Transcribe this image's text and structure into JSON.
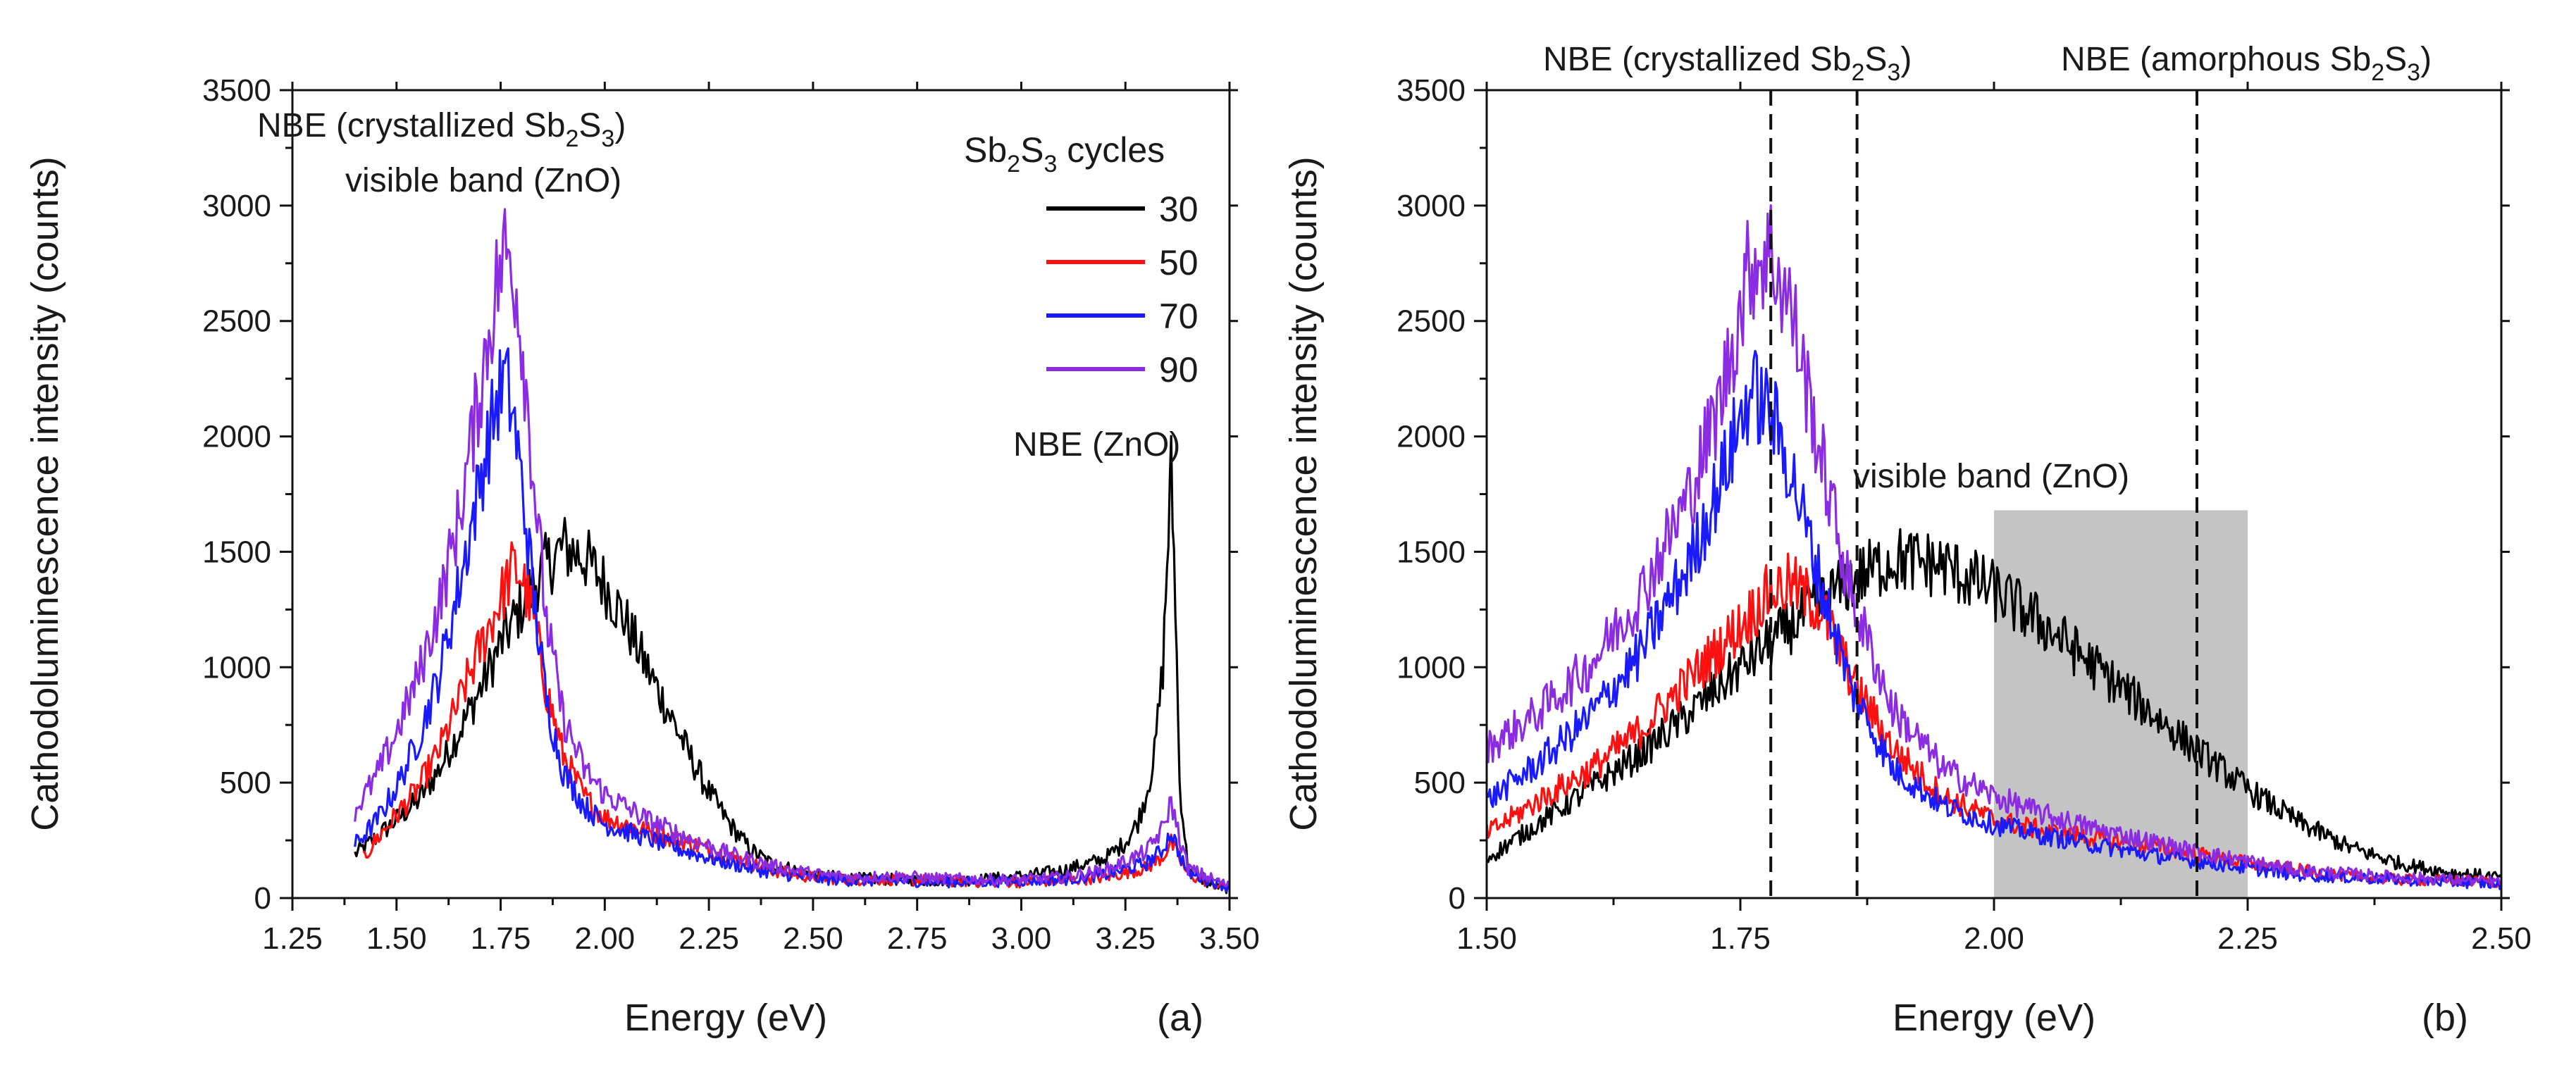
{
  "chart_data": [
    {
      "type": "line",
      "panel_label": "(a)",
      "xlabel": "Energy (eV)",
      "ylabel": "Cathodoluminescence intensity (counts)",
      "xlim": [
        1.25,
        3.5
      ],
      "ylim": [
        0,
        3500
      ],
      "xticks": [
        "1.25",
        "1.50",
        "1.75",
        "2.00",
        "2.25",
        "2.50",
        "2.75",
        "3.00",
        "3.25",
        "3.50"
      ],
      "yticks": [
        "0",
        "500",
        "1000",
        "1500",
        "2000",
        "2500",
        "3000",
        "3500"
      ],
      "legend": {
        "title_main": "Sb",
        "title_sub1": "2",
        "title_mid": "S",
        "title_sub2": "3",
        "title_tail": " cycles",
        "placement": "top-right"
      },
      "annotations": [
        {
          "text_main": "NBE (crystallized Sb",
          "sub1": "2",
          "mid": "S",
          "sub2": "3",
          "tail": ")"
        },
        {
          "text": "visible band (ZnO)"
        },
        {
          "text": "NBE (ZnO)"
        }
      ],
      "series": [
        {
          "name": "30",
          "color": "#000000",
          "points": [
            [
              1.4,
              190
            ],
            [
              1.45,
              260
            ],
            [
              1.5,
              340
            ],
            [
              1.55,
              420
            ],
            [
              1.6,
              550
            ],
            [
              1.65,
              720
            ],
            [
              1.7,
              900
            ],
            [
              1.75,
              1100
            ],
            [
              1.8,
              1260
            ],
            [
              1.85,
              1420
            ],
            [
              1.9,
              1520
            ],
            [
              1.95,
              1480
            ],
            [
              2.0,
              1360
            ],
            [
              2.05,
              1200
            ],
            [
              2.1,
              1000
            ],
            [
              2.15,
              820
            ],
            [
              2.2,
              630
            ],
            [
              2.25,
              460
            ],
            [
              2.3,
              320
            ],
            [
              2.35,
              210
            ],
            [
              2.4,
              150
            ],
            [
              2.5,
              100
            ],
            [
              2.6,
              85
            ],
            [
              2.7,
              80
            ],
            [
              2.8,
              75
            ],
            [
              2.9,
              80
            ],
            [
              3.0,
              95
            ],
            [
              3.1,
              120
            ],
            [
              3.2,
              170
            ],
            [
              3.25,
              240
            ],
            [
              3.28,
              330
            ],
            [
              3.3,
              450
            ],
            [
              3.32,
              620
            ],
            [
              3.34,
              1000
            ],
            [
              3.35,
              1450
            ],
            [
              3.36,
              1850
            ],
            [
              3.37,
              1300
            ],
            [
              3.38,
              500
            ],
            [
              3.4,
              130
            ],
            [
              3.45,
              60
            ],
            [
              3.5,
              40
            ]
          ]
        },
        {
          "name": "50",
          "color": "#ff1010",
          "points": [
            [
              1.42,
              170
            ],
            [
              1.45,
              250
            ],
            [
              1.5,
              360
            ],
            [
              1.55,
              470
            ],
            [
              1.6,
              630
            ],
            [
              1.65,
              850
            ],
            [
              1.7,
              1080
            ],
            [
              1.75,
              1300
            ],
            [
              1.78,
              1430
            ],
            [
              1.8,
              1400
            ],
            [
              1.83,
              1200
            ],
            [
              1.86,
              900
            ],
            [
              1.9,
              620
            ],
            [
              1.95,
              440
            ],
            [
              2.0,
              350
            ],
            [
              2.1,
              290
            ],
            [
              2.2,
              240
            ],
            [
              2.3,
              180
            ],
            [
              2.4,
              120
            ],
            [
              2.5,
              90
            ],
            [
              2.6,
              80
            ],
            [
              2.7,
              80
            ],
            [
              2.8,
              75
            ],
            [
              2.9,
              70
            ],
            [
              3.0,
              70
            ],
            [
              3.1,
              75
            ],
            [
              3.2,
              90
            ],
            [
              3.3,
              130
            ],
            [
              3.34,
              180
            ],
            [
              3.36,
              240
            ],
            [
              3.38,
              170
            ],
            [
              3.4,
              100
            ],
            [
              3.5,
              40
            ]
          ]
        },
        {
          "name": "70",
          "color": "#1a1aff",
          "points": [
            [
              1.4,
              230
            ],
            [
              1.45,
              330
            ],
            [
              1.5,
              480
            ],
            [
              1.55,
              680
            ],
            [
              1.6,
              950
            ],
            [
              1.65,
              1350
            ],
            [
              1.7,
              1800
            ],
            [
              1.74,
              2150
            ],
            [
              1.76,
              2250
            ],
            [
              1.78,
              2100
            ],
            [
              1.8,
              1800
            ],
            [
              1.83,
              1300
            ],
            [
              1.86,
              850
            ],
            [
              1.9,
              550
            ],
            [
              1.95,
              400
            ],
            [
              2.0,
              320
            ],
            [
              2.1,
              260
            ],
            [
              2.2,
              200
            ],
            [
              2.3,
              150
            ],
            [
              2.4,
              110
            ],
            [
              2.5,
              85
            ],
            [
              2.6,
              75
            ],
            [
              2.7,
              75
            ],
            [
              2.8,
              70
            ],
            [
              2.9,
              70
            ],
            [
              3.0,
              75
            ],
            [
              3.1,
              80
            ],
            [
              3.2,
              100
            ],
            [
              3.3,
              150
            ],
            [
              3.34,
              210
            ],
            [
              3.36,
              290
            ],
            [
              3.38,
              190
            ],
            [
              3.4,
              110
            ],
            [
              3.5,
              45
            ]
          ]
        },
        {
          "name": "90",
          "color": "#8b2be2",
          "points": [
            [
              1.4,
              380
            ],
            [
              1.45,
              520
            ],
            [
              1.5,
              720
            ],
            [
              1.55,
              950
            ],
            [
              1.6,
              1250
            ],
            [
              1.65,
              1650
            ],
            [
              1.7,
              2200
            ],
            [
              1.74,
              2650
            ],
            [
              1.76,
              2800
            ],
            [
              1.78,
              2750
            ],
            [
              1.8,
              2450
            ],
            [
              1.83,
              1800
            ],
            [
              1.86,
              1200
            ],
            [
              1.9,
              780
            ],
            [
              1.95,
              560
            ],
            [
              2.0,
              450
            ],
            [
              2.1,
              340
            ],
            [
              2.2,
              260
            ],
            [
              2.3,
              190
            ],
            [
              2.4,
              140
            ],
            [
              2.5,
              105
            ],
            [
              2.6,
              90
            ],
            [
              2.7,
              95
            ],
            [
              2.8,
              85
            ],
            [
              2.9,
              80
            ],
            [
              3.0,
              80
            ],
            [
              3.1,
              90
            ],
            [
              3.2,
              120
            ],
            [
              3.3,
              200
            ],
            [
              3.34,
              300
            ],
            [
              3.36,
              420
            ],
            [
              3.38,
              260
            ],
            [
              3.4,
              130
            ],
            [
              3.5,
              50
            ]
          ]
        }
      ]
    },
    {
      "type": "line",
      "panel_label": "(b)",
      "xlabel": "Energy (eV)",
      "ylabel": "Cathodoluminescence intensity (counts)",
      "xlim": [
        1.5,
        2.5
      ],
      "ylim": [
        0,
        3500
      ],
      "xticks": [
        "1.50",
        "1.75",
        "2.00",
        "2.25",
        "2.50"
      ],
      "yticks": [
        "0",
        "500",
        "1000",
        "1500",
        "2000",
        "2500",
        "3000",
        "3500"
      ],
      "reference_lines": [
        {
          "x": 1.78,
          "text_main": "NBE (crystallized Sb",
          "sub1": "2",
          "mid": "S",
          "sub2": "3",
          "tail": ")"
        },
        {
          "x": 1.865,
          "text": "visible band (ZnO)"
        },
        {
          "x": 2.2,
          "text_main": "NBE (amorphous Sb",
          "sub1": "2",
          "mid": "S",
          "sub2": "3",
          "tail": ")"
        }
      ],
      "shaded_region": {
        "x": [
          2.0,
          2.25
        ],
        "y": [
          0,
          1680
        ],
        "color": "#c4c4c4"
      },
      "series": [
        {
          "name": "30",
          "color": "#000000",
          "points": [
            [
              1.5,
              170
            ],
            [
              1.55,
              320
            ],
            [
              1.6,
              470
            ],
            [
              1.65,
              620
            ],
            [
              1.7,
              800
            ],
            [
              1.75,
              1000
            ],
            [
              1.8,
              1180
            ],
            [
              1.85,
              1350
            ],
            [
              1.9,
              1470
            ],
            [
              1.95,
              1440
            ],
            [
              2.0,
              1330
            ],
            [
              2.05,
              1180
            ],
            [
              2.1,
              1000
            ],
            [
              2.15,
              820
            ],
            [
              2.2,
              640
            ],
            [
              2.25,
              470
            ],
            [
              2.3,
              330
            ],
            [
              2.35,
              220
            ],
            [
              2.4,
              150
            ],
            [
              2.45,
              110
            ],
            [
              2.5,
              90
            ]
          ]
        },
        {
          "name": "50",
          "color": "#ff1010",
          "points": [
            [
              1.5,
              280
            ],
            [
              1.55,
              420
            ],
            [
              1.6,
              550
            ],
            [
              1.65,
              720
            ],
            [
              1.7,
              950
            ],
            [
              1.75,
              1180
            ],
            [
              1.78,
              1330
            ],
            [
              1.8,
              1360
            ],
            [
              1.83,
              1250
            ],
            [
              1.86,
              950
            ],
            [
              1.9,
              650
            ],
            [
              1.95,
              440
            ],
            [
              2.0,
              340
            ],
            [
              2.05,
              290
            ],
            [
              2.1,
              260
            ],
            [
              2.15,
              230
            ],
            [
              2.2,
              190
            ],
            [
              2.25,
              150
            ],
            [
              2.3,
              120
            ],
            [
              2.35,
              95
            ],
            [
              2.4,
              80
            ],
            [
              2.5,
              70
            ]
          ]
        },
        {
          "name": "70",
          "color": "#1a1aff",
          "points": [
            [
              1.5,
              420
            ],
            [
              1.55,
              580
            ],
            [
              1.6,
              780
            ],
            [
              1.65,
              1050
            ],
            [
              1.7,
              1450
            ],
            [
              1.73,
              1800
            ],
            [
              1.76,
              2200
            ],
            [
              1.78,
              2100
            ],
            [
              1.8,
              1850
            ],
            [
              1.83,
              1350
            ],
            [
              1.86,
              900
            ],
            [
              1.9,
              560
            ],
            [
              1.95,
              400
            ],
            [
              2.0,
              320
            ],
            [
              2.05,
              270
            ],
            [
              2.1,
              230
            ],
            [
              2.15,
              190
            ],
            [
              2.2,
              160
            ],
            [
              2.25,
              130
            ],
            [
              2.3,
              100
            ],
            [
              2.4,
              80
            ],
            [
              2.5,
              60
            ]
          ]
        },
        {
          "name": "90",
          "color": "#8b2be2",
          "points": [
            [
              1.5,
              650
            ],
            [
              1.55,
              800
            ],
            [
              1.6,
              1000
            ],
            [
              1.65,
              1300
            ],
            [
              1.7,
              1750
            ],
            [
              1.73,
              2150
            ],
            [
              1.76,
              2750
            ],
            [
              1.78,
              2800
            ],
            [
              1.8,
              2550
            ],
            [
              1.83,
              1900
            ],
            [
              1.86,
              1300
            ],
            [
              1.9,
              820
            ],
            [
              1.95,
              560
            ],
            [
              2.0,
              440
            ],
            [
              2.05,
              360
            ],
            [
              2.1,
              300
            ],
            [
              2.15,
              250
            ],
            [
              2.2,
              200
            ],
            [
              2.25,
              160
            ],
            [
              2.3,
              120
            ],
            [
              2.4,
              90
            ],
            [
              2.5,
              70
            ]
          ]
        }
      ]
    }
  ]
}
